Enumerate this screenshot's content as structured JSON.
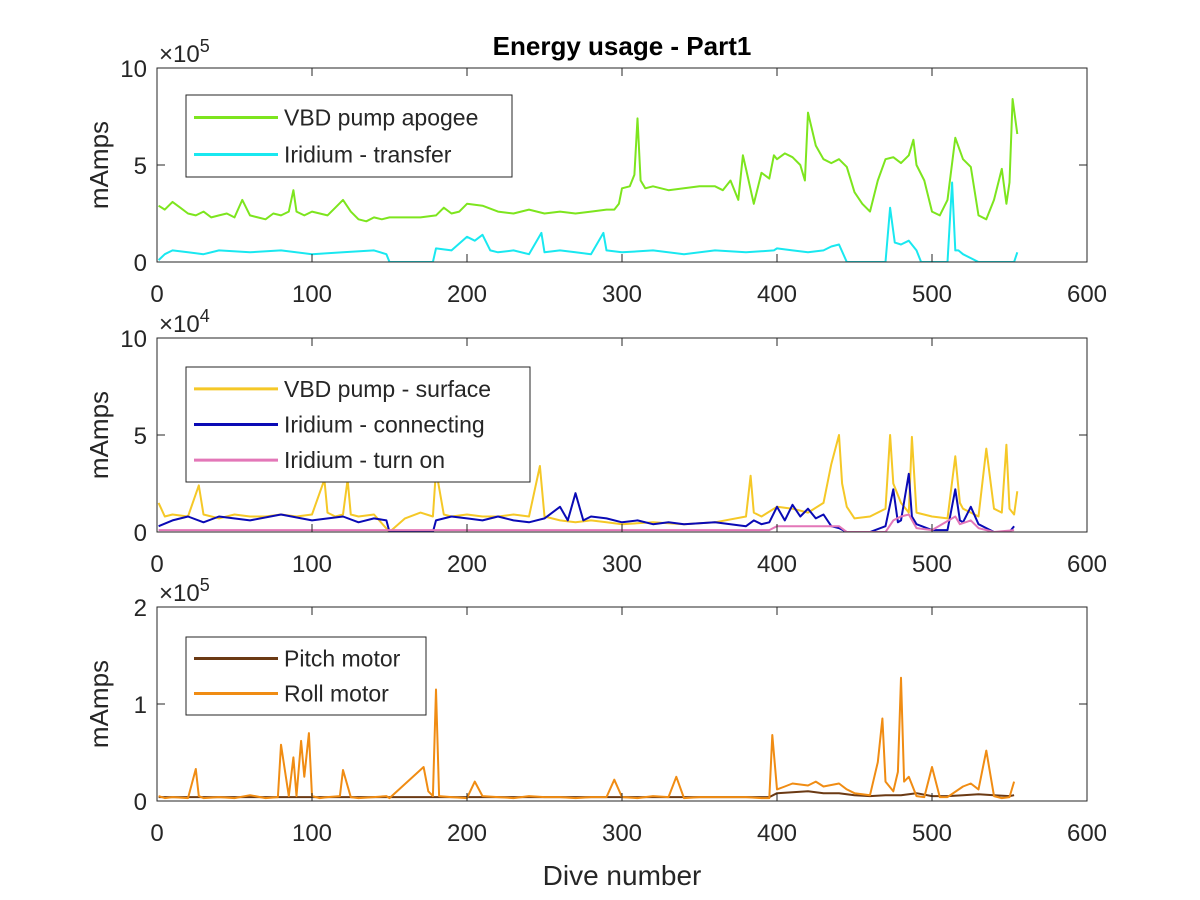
{
  "figure": {
    "title": "Energy usage - Part1",
    "xlabel": "Dive number"
  },
  "chart_data": [
    {
      "type": "line",
      "title": "Energy usage - Part1",
      "xlabel": "",
      "ylabel": "mAmps",
      "exponent_label": "×10",
      "exponent": "5",
      "xlim": [
        0,
        600
      ],
      "ylim": [
        0,
        10
      ],
      "xticks": [
        "0",
        "100",
        "200",
        "300",
        "400",
        "500",
        "600"
      ],
      "yticks": [
        "0",
        "5",
        "10"
      ],
      "legend_position": "top-left",
      "series": [
        {
          "name": "VBD pump apogee",
          "color": "#7de51e",
          "x": [
            1,
            5,
            10,
            15,
            20,
            25,
            30,
            35,
            40,
            45,
            50,
            55,
            60,
            65,
            70,
            75,
            80,
            85,
            88,
            90,
            95,
            100,
            105,
            110,
            115,
            120,
            125,
            130,
            135,
            140,
            145,
            150,
            160,
            170,
            180,
            185,
            190,
            195,
            200,
            210,
            220,
            230,
            240,
            250,
            260,
            270,
            280,
            290,
            295,
            298,
            300,
            305,
            308,
            310,
            312,
            315,
            320,
            330,
            340,
            350,
            360,
            365,
            370,
            375,
            378,
            380,
            385,
            390,
            395,
            398,
            400,
            405,
            410,
            415,
            418,
            420,
            425,
            430,
            435,
            440,
            445,
            450,
            455,
            460,
            465,
            470,
            475,
            480,
            485,
            488,
            490,
            495,
            500,
            505,
            510,
            515,
            520,
            525,
            530,
            535,
            540,
            545,
            548,
            550,
            552,
            555
          ],
          "y": [
            2.9,
            2.7,
            3.1,
            2.8,
            2.5,
            2.4,
            2.6,
            2.3,
            2.4,
            2.5,
            2.3,
            3.2,
            2.4,
            2.3,
            2.2,
            2.5,
            2.4,
            2.6,
            3.7,
            2.6,
            2.4,
            2.6,
            2.5,
            2.4,
            2.8,
            3.2,
            2.6,
            2.2,
            2.1,
            2.3,
            2.2,
            2.3,
            2.3,
            2.3,
            2.4,
            2.8,
            2.5,
            2.6,
            3.0,
            2.9,
            2.6,
            2.5,
            2.7,
            2.5,
            2.6,
            2.5,
            2.6,
            2.7,
            2.7,
            3.0,
            3.8,
            3.9,
            4.5,
            7.4,
            4.2,
            3.8,
            3.9,
            3.7,
            3.8,
            3.9,
            3.9,
            3.7,
            4.2,
            3.2,
            5.5,
            4.8,
            3.0,
            4.6,
            4.3,
            5.5,
            5.3,
            5.6,
            5.4,
            5.0,
            4.2,
            7.7,
            6.0,
            5.3,
            5.1,
            5.3,
            4.9,
            3.6,
            3.0,
            2.6,
            4.2,
            5.3,
            5.4,
            5.1,
            5.5,
            6.3,
            5.0,
            4.2,
            2.6,
            2.4,
            3.2,
            6.4,
            5.3,
            4.9,
            2.4,
            2.2,
            3.2,
            4.8,
            3.0,
            4.1,
            8.4,
            6.6
          ]
        },
        {
          "name": "Iridium - transfer",
          "color": "#19e8f0",
          "x": [
            1,
            5,
            10,
            20,
            30,
            40,
            60,
            80,
            100,
            120,
            140,
            148,
            150,
            178,
            180,
            190,
            200,
            205,
            210,
            215,
            220,
            230,
            240,
            248,
            250,
            260,
            270,
            280,
            288,
            290,
            300,
            320,
            340,
            360,
            380,
            398,
            400,
            410,
            420,
            430,
            435,
            440,
            445,
            470,
            473,
            476,
            480,
            485,
            490,
            493,
            500,
            510,
            513,
            515,
            517,
            520,
            530,
            540,
            550,
            553,
            555
          ],
          "y": [
            0.1,
            0.4,
            0.6,
            0.5,
            0.4,
            0.6,
            0.5,
            0.6,
            0.4,
            0.5,
            0.6,
            0.4,
            0.0,
            0.0,
            0.7,
            0.6,
            1.3,
            1.1,
            1.4,
            0.6,
            0.5,
            0.6,
            0.4,
            1.5,
            0.5,
            0.6,
            0.5,
            0.4,
            1.5,
            0.6,
            0.5,
            0.6,
            0.4,
            0.6,
            0.5,
            0.6,
            0.7,
            0.6,
            0.5,
            0.6,
            0.8,
            0.9,
            0.0,
            0.0,
            2.8,
            1.0,
            0.9,
            1.1,
            0.6,
            0.0,
            0.0,
            0.0,
            4.1,
            0.6,
            0.6,
            0.4,
            0.0,
            0.0,
            0.0,
            0.0,
            0.5
          ]
        }
      ]
    },
    {
      "type": "line",
      "ylabel": "mAmps",
      "exponent_label": "×10",
      "exponent": "4",
      "xlim": [
        0,
        600
      ],
      "ylim": [
        0,
        10
      ],
      "xticks": [
        "0",
        "100",
        "200",
        "300",
        "400",
        "500",
        "600"
      ],
      "yticks": [
        "0",
        "5",
        "10"
      ],
      "legend_position": "top-left",
      "series": [
        {
          "name": "VBD pump - surface",
          "color": "#f5c827",
          "x": [
            1,
            5,
            10,
            20,
            27,
            30,
            40,
            50,
            60,
            70,
            80,
            90,
            100,
            108,
            110,
            115,
            120,
            123,
            125,
            130,
            140,
            150,
            160,
            170,
            178,
            180,
            185,
            190,
            200,
            210,
            220,
            230,
            240,
            247,
            250,
            260,
            270,
            280,
            290,
            300,
            320,
            340,
            360,
            380,
            383,
            385,
            390,
            400,
            410,
            420,
            430,
            435,
            440,
            442,
            445,
            450,
            460,
            470,
            473,
            475,
            480,
            485,
            487,
            490,
            500,
            510,
            515,
            518,
            520,
            525,
            530,
            535,
            540,
            545,
            548,
            550,
            553,
            555
          ],
          "y": [
            1.5,
            0.8,
            0.9,
            0.8,
            2.4,
            0.9,
            0.7,
            0.9,
            0.8,
            0.8,
            0.9,
            0.8,
            0.9,
            2.7,
            1.0,
            0.8,
            0.9,
            2.7,
            0.9,
            0.8,
            0.9,
            0.0,
            0.7,
            1.0,
            0.8,
            3.2,
            0.9,
            0.8,
            0.9,
            0.8,
            0.8,
            0.9,
            0.8,
            3.4,
            0.8,
            0.6,
            0.5,
            0.6,
            0.5,
            0.4,
            0.5,
            0.4,
            0.5,
            0.8,
            2.9,
            1.0,
            0.8,
            1.3,
            1.2,
            1.0,
            1.5,
            3.5,
            5.0,
            2.5,
            1.3,
            0.7,
            0.8,
            1.2,
            5.0,
            2.5,
            1.5,
            1.0,
            4.9,
            1.0,
            0.8,
            0.7,
            3.9,
            1.5,
            1.2,
            1.0,
            0.8,
            4.3,
            1.2,
            1.0,
            4.5,
            1.2,
            0.9,
            2.1
          ]
        },
        {
          "name": "Iridium - connecting",
          "color": "#0a0ab5",
          "x": [
            1,
            10,
            20,
            30,
            40,
            60,
            80,
            100,
            120,
            130,
            140,
            148,
            150,
            178,
            180,
            190,
            200,
            210,
            220,
            230,
            240,
            250,
            260,
            265,
            270,
            275,
            280,
            290,
            300,
            310,
            320,
            330,
            340,
            360,
            380,
            385,
            390,
            395,
            400,
            405,
            410,
            415,
            420,
            425,
            430,
            435,
            440,
            445,
            450,
            460,
            470,
            475,
            478,
            480,
            485,
            487,
            490,
            500,
            510,
            515,
            518,
            520,
            525,
            530,
            535,
            540,
            550,
            553
          ],
          "y": [
            0.3,
            0.6,
            0.8,
            0.5,
            0.8,
            0.6,
            0.9,
            0.6,
            0.8,
            0.5,
            0.7,
            0.6,
            0.0,
            0.0,
            0.6,
            0.8,
            0.7,
            0.6,
            0.8,
            0.6,
            0.5,
            0.7,
            1.3,
            0.6,
            2.0,
            0.6,
            0.8,
            0.7,
            0.5,
            0.6,
            0.4,
            0.5,
            0.4,
            0.5,
            0.3,
            0.6,
            0.4,
            0.5,
            1.3,
            0.6,
            1.4,
            0.8,
            1.2,
            0.7,
            0.9,
            0.3,
            0.2,
            0.0,
            0.0,
            0.0,
            0.3,
            2.2,
            0.5,
            0.6,
            3.0,
            0.8,
            0.4,
            0.1,
            0.1,
            2.2,
            0.6,
            0.5,
            1.3,
            0.4,
            0.2,
            0.0,
            0.0,
            0.3
          ]
        },
        {
          "name": "Iridium - turn on",
          "color": "#e377b8",
          "x": [
            1,
            50,
            100,
            150,
            200,
            250,
            300,
            350,
            395,
            400,
            420,
            440,
            445,
            470,
            475,
            480,
            485,
            490,
            500,
            515,
            518,
            525,
            530,
            540,
            553
          ],
          "y": [
            0.1,
            0.1,
            0.1,
            0.1,
            0.1,
            0.1,
            0.1,
            0.1,
            0.1,
            0.3,
            0.3,
            0.3,
            0.0,
            0.0,
            0.6,
            0.8,
            0.9,
            0.2,
            0.1,
            0.8,
            0.4,
            0.6,
            0.2,
            0.0,
            0.1
          ]
        }
      ]
    },
    {
      "type": "line",
      "ylabel": "mAmps",
      "exponent_label": "×10",
      "exponent": "5",
      "xlim": [
        0,
        600
      ],
      "ylim": [
        0,
        2
      ],
      "xticks": [
        "0",
        "100",
        "200",
        "300",
        "400",
        "500",
        "600"
      ],
      "yticks": [
        "0",
        "1",
        "2"
      ],
      "legend_position": "top-left",
      "series": [
        {
          "name": "Pitch motor",
          "color": "#6b3a14",
          "x": [
            1,
            50,
            100,
            150,
            170,
            175,
            200,
            250,
            300,
            350,
            395,
            400,
            410,
            420,
            430,
            440,
            450,
            460,
            470,
            480,
            490,
            500,
            510,
            520,
            530,
            540,
            550,
            553
          ],
          "y": [
            0.04,
            0.04,
            0.04,
            0.04,
            0.04,
            0.04,
            0.04,
            0.04,
            0.04,
            0.04,
            0.04,
            0.08,
            0.09,
            0.1,
            0.08,
            0.08,
            0.06,
            0.05,
            0.06,
            0.06,
            0.08,
            0.05,
            0.05,
            0.06,
            0.07,
            0.06,
            0.05,
            0.06
          ]
        },
        {
          "name": "Roll motor",
          "color": "#f08c13",
          "x": [
            1,
            5,
            10,
            20,
            25,
            27,
            30,
            40,
            50,
            60,
            70,
            78,
            80,
            85,
            88,
            90,
            93,
            95,
            98,
            100,
            105,
            110,
            118,
            120,
            125,
            130,
            140,
            148,
            150,
            172,
            175,
            178,
            180,
            182,
            190,
            200,
            205,
            210,
            220,
            230,
            240,
            250,
            260,
            270,
            280,
            290,
            295,
            300,
            310,
            320,
            330,
            335,
            340,
            350,
            360,
            380,
            390,
            395,
            397,
            400,
            405,
            410,
            420,
            425,
            430,
            440,
            445,
            450,
            460,
            465,
            468,
            470,
            475,
            478,
            480,
            482,
            485,
            490,
            495,
            500,
            505,
            510,
            520,
            525,
            530,
            535,
            540,
            545,
            550,
            553
          ],
          "y": [
            0.05,
            0.03,
            0.04,
            0.03,
            0.33,
            0.05,
            0.03,
            0.04,
            0.03,
            0.06,
            0.03,
            0.04,
            0.58,
            0.05,
            0.45,
            0.05,
            0.62,
            0.25,
            0.7,
            0.05,
            0.03,
            0.04,
            0.05,
            0.32,
            0.04,
            0.03,
            0.04,
            0.05,
            0.03,
            0.35,
            0.1,
            0.05,
            1.15,
            0.05,
            0.04,
            0.03,
            0.2,
            0.05,
            0.04,
            0.03,
            0.05,
            0.04,
            0.04,
            0.03,
            0.04,
            0.04,
            0.22,
            0.04,
            0.03,
            0.05,
            0.04,
            0.25,
            0.03,
            0.04,
            0.04,
            0.04,
            0.03,
            0.03,
            0.68,
            0.12,
            0.15,
            0.18,
            0.16,
            0.2,
            0.15,
            0.18,
            0.12,
            0.08,
            0.06,
            0.4,
            0.85,
            0.2,
            0.1,
            0.3,
            1.27,
            0.2,
            0.25,
            0.05,
            0.04,
            0.35,
            0.04,
            0.04,
            0.15,
            0.18,
            0.12,
            0.52,
            0.05,
            0.03,
            0.04,
            0.2
          ]
        }
      ]
    }
  ]
}
